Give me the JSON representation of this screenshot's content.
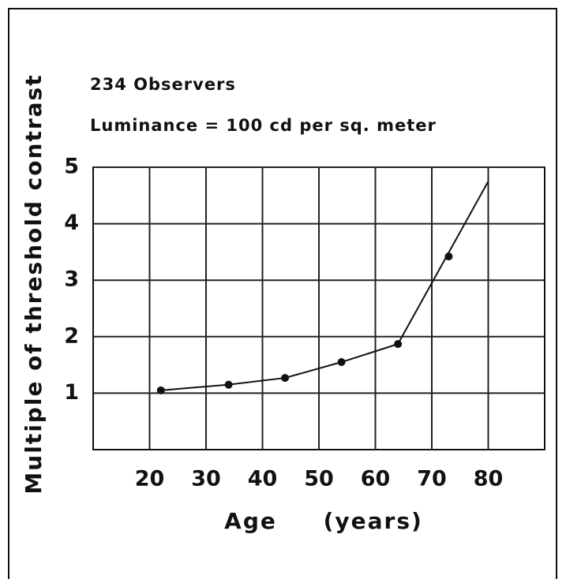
{
  "chart_data": {
    "type": "line",
    "annotations": [
      "234 Observers",
      "Luminance = 100 cd per sq. meter"
    ],
    "xlabel": "Age     (years)",
    "ylabel": "Multiple of threshold contrast",
    "x": [
      22,
      34,
      44,
      54,
      64,
      73
    ],
    "values": [
      1.05,
      1.15,
      1.27,
      1.55,
      1.87,
      3.42
    ],
    "curve_x": [
      22,
      34,
      44,
      54,
      64,
      80
    ],
    "curve_values": [
      1.05,
      1.15,
      1.27,
      1.55,
      1.87,
      4.75
    ],
    "color": "#111111",
    "xlim": [
      10,
      90
    ],
    "xticks": [
      20,
      30,
      40,
      50,
      60,
      70,
      80
    ],
    "ylim": [
      0,
      5
    ],
    "yticks": [
      1,
      2,
      3,
      4,
      5
    ],
    "grid": true
  }
}
